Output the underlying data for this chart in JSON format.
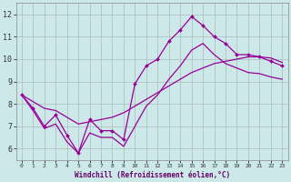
{
  "xlabel": "Windchill (Refroidissement éolien,°C)",
  "bg_color": "#cce8e8",
  "line_color": "#990099",
  "grid_color": "#aabbbb",
  "xlim": [
    -0.5,
    23.5
  ],
  "ylim": [
    5.5,
    12.5
  ],
  "yticks": [
    6,
    7,
    8,
    9,
    10,
    11,
    12
  ],
  "xticks": [
    0,
    1,
    2,
    3,
    4,
    5,
    6,
    7,
    8,
    9,
    10,
    11,
    12,
    13,
    14,
    15,
    16,
    17,
    18,
    19,
    20,
    21,
    22,
    23
  ],
  "hours": [
    0,
    1,
    2,
    3,
    4,
    5,
    6,
    7,
    8,
    9,
    10,
    11,
    12,
    13,
    14,
    15,
    16,
    17,
    18,
    19,
    20,
    21,
    22,
    23
  ],
  "line1": [
    8.4,
    7.8,
    7.0,
    7.5,
    6.6,
    5.8,
    7.3,
    6.8,
    6.8,
    6.4,
    8.9,
    9.7,
    10.0,
    10.8,
    11.3,
    11.9,
    11.5,
    11.0,
    10.7,
    10.2,
    10.2,
    10.1,
    9.9,
    9.7
  ],
  "line2": [
    8.4,
    8.1,
    7.8,
    7.7,
    7.4,
    7.1,
    7.2,
    7.3,
    7.4,
    7.6,
    7.9,
    8.2,
    8.5,
    8.8,
    9.1,
    9.4,
    9.6,
    9.8,
    9.9,
    10.0,
    10.1,
    10.1,
    10.05,
    9.85
  ],
  "line3": [
    8.4,
    7.7,
    6.9,
    7.1,
    6.3,
    5.8,
    6.7,
    6.5,
    6.5,
    6.1,
    7.0,
    7.9,
    8.4,
    9.1,
    9.7,
    10.4,
    10.7,
    10.2,
    9.8,
    9.6,
    9.4,
    9.35,
    9.2,
    9.1
  ]
}
